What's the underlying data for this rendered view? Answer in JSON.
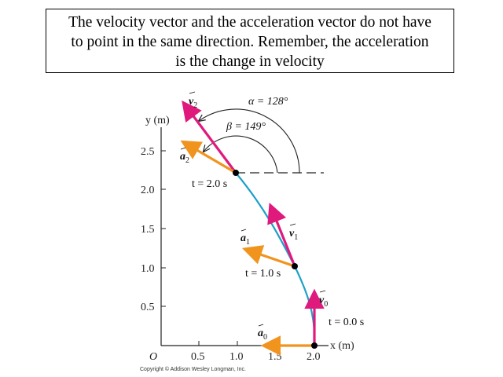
{
  "caption": {
    "line1": "The velocity vector and the acceleration vector do not have",
    "line2": "to point in the same direction.  Remember, the acceleration",
    "line3": "is the change in velocity"
  },
  "axes": {
    "y_label": "y (m)",
    "x_label": "x (m)",
    "origin_label": "O",
    "y_ticks": [
      "0.5",
      "1.0",
      "1.5",
      "2.0",
      "2.5"
    ],
    "x_ticks": [
      "0.5",
      "1.0",
      "1.5",
      "2.0"
    ]
  },
  "points": [
    {
      "time_label": "t = 0.0 s",
      "v_sym": "v",
      "v_sub": "0",
      "a_sym": "a",
      "a_sub": "0"
    },
    {
      "time_label": "t = 1.0 s",
      "v_sym": "v",
      "v_sub": "1",
      "a_sym": "a",
      "a_sub": "1"
    },
    {
      "time_label": "t = 2.0 s",
      "v_sym": "v",
      "v_sub": "2",
      "a_sym": "a",
      "a_sub": "2"
    }
  ],
  "angles": {
    "alpha_label": "α = 128°",
    "beta_label": "β = 149°"
  },
  "copyright": "Copyright © Addison Wesley Longman, Inc.",
  "colors": {
    "velocity": "#e0197d",
    "acceleration": "#f0941e",
    "path": "#1ea0c8",
    "axis": "#222222"
  }
}
